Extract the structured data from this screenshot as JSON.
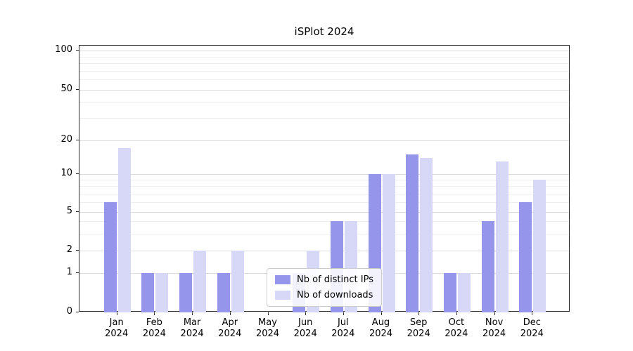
{
  "chart_data": {
    "type": "bar",
    "title": "iSPlot 2024",
    "yscale": "symlog",
    "ylim": [
      0,
      100
    ],
    "yticks": [
      0,
      1,
      2,
      5,
      10,
      20,
      50,
      100
    ],
    "minor_yticks": [
      3,
      4,
      6,
      7,
      8,
      9,
      30,
      40,
      60,
      70,
      80,
      90
    ],
    "grid": true,
    "legend_position": "lower center",
    "categories": [
      {
        "month": "Jan",
        "year": "2024"
      },
      {
        "month": "Feb",
        "year": "2024"
      },
      {
        "month": "Mar",
        "year": "2024"
      },
      {
        "month": "Apr",
        "year": "2024"
      },
      {
        "month": "May",
        "year": "2024"
      },
      {
        "month": "Jun",
        "year": "2024"
      },
      {
        "month": "Jul",
        "year": "2024"
      },
      {
        "month": "Aug",
        "year": "2024"
      },
      {
        "month": "Sep",
        "year": "2024"
      },
      {
        "month": "Oct",
        "year": "2024"
      },
      {
        "month": "Nov",
        "year": "2024"
      },
      {
        "month": "Dec",
        "year": "2024"
      }
    ],
    "series": [
      {
        "name": "Nb of distinct IPs",
        "color": "#9595ec",
        "values": [
          6,
          1,
          1,
          1,
          0,
          1,
          4,
          10,
          15,
          1,
          4,
          6
        ]
      },
      {
        "name": "Nb of downloads",
        "color": "#d7d7f8",
        "values": [
          17,
          1,
          2,
          2,
          0,
          2,
          4,
          10,
          14,
          1,
          13,
          9
        ]
      }
    ]
  }
}
